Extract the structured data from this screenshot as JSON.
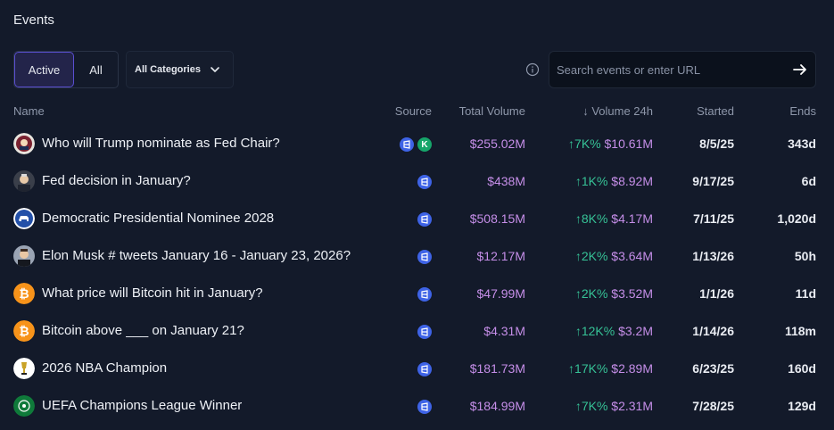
{
  "title": "Events",
  "tabs": [
    {
      "label": "Active"
    },
    {
      "label": "All"
    }
  ],
  "category": {
    "selected": "All Categories"
  },
  "search": {
    "placeholder": "Search events or enter URL"
  },
  "columns": {
    "name": "Name",
    "source": "Source",
    "total": "Total Volume",
    "vol24": "↓ Volume 24h",
    "started": "Started",
    "ends": "Ends"
  },
  "rows": [
    {
      "name": "Who will Trump nominate as Fed Chair?",
      "sources": [
        "polymarket",
        "kalshi"
      ],
      "total": "$255.02M",
      "change": "↑7K%",
      "vol24": "$10.61M",
      "started": "8/5/25",
      "ends": "343d"
    },
    {
      "name": "Fed decision in January?",
      "sources": [
        "polymarket"
      ],
      "total": "$438M",
      "change": "↑1K%",
      "vol24": "$8.92M",
      "started": "9/17/25",
      "ends": "6d"
    },
    {
      "name": "Democratic Presidential Nominee 2028",
      "sources": [
        "polymarket"
      ],
      "total": "$508.15M",
      "change": "↑8K%",
      "vol24": "$4.17M",
      "started": "7/11/25",
      "ends": "1,020d"
    },
    {
      "name": "Elon Musk # tweets January 16 - January 23, 2026?",
      "sources": [
        "polymarket"
      ],
      "total": "$12.17M",
      "change": "↑2K%",
      "vol24": "$3.64M",
      "started": "1/13/26",
      "ends": "50h"
    },
    {
      "name": "What price will Bitcoin hit in January?",
      "sources": [
        "polymarket"
      ],
      "total": "$47.99M",
      "change": "↑2K%",
      "vol24": "$3.52M",
      "started": "1/1/26",
      "ends": "11d"
    },
    {
      "name": "Bitcoin above ___ on January 21?",
      "sources": [
        "polymarket"
      ],
      "total": "$4.31M",
      "change": "↑12K%",
      "vol24": "$3.2M",
      "started": "1/14/26",
      "ends": "118m"
    },
    {
      "name": "2026 NBA Champion",
      "sources": [
        "polymarket"
      ],
      "total": "$181.73M",
      "change": "↑17K%",
      "vol24": "$2.89M",
      "started": "6/23/25",
      "ends": "160d"
    },
    {
      "name": "UEFA Champions League Winner",
      "sources": [
        "polymarket"
      ],
      "total": "$184.99M",
      "change": "↑7K%",
      "vol24": "$2.31M",
      "started": "7/28/25",
      "ends": "129d"
    }
  ],
  "icons": {
    "info": "info-icon",
    "dropdown": "chevron-down-icon",
    "go": "arrow-right-icon",
    "kalshi_letter": "K"
  },
  "colors": {
    "accent": "#5a4fd1",
    "volume": "#c58ee8",
    "positive": "#36c296",
    "polymarket": "#3e63e6",
    "kalshi": "#16a56a"
  }
}
